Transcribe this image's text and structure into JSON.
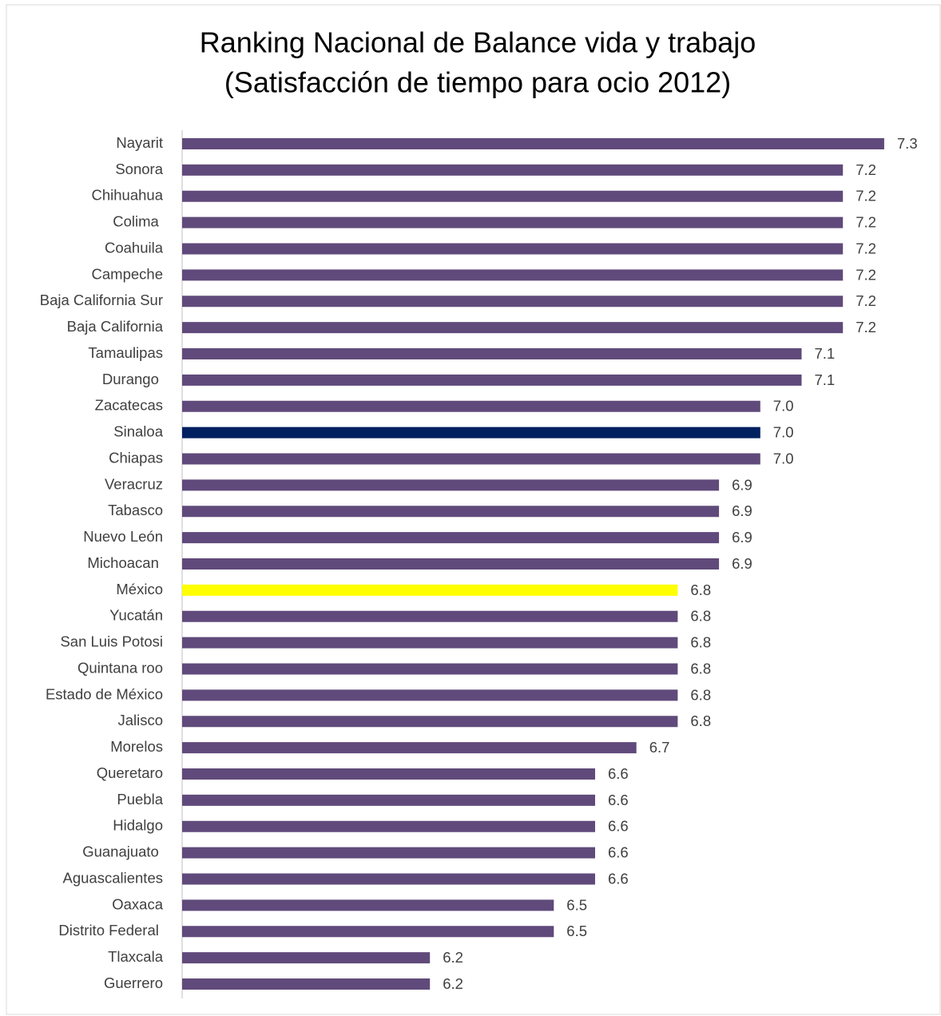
{
  "chart_data": {
    "type": "bar",
    "orientation": "horizontal",
    "title": [
      "Ranking Nacional de Balance vida y trabajo",
      "(Satisfacción de tiempo para ocio 2012)"
    ],
    "categories": [
      "Nayarit",
      "Sonora",
      "Chihuahua",
      "Colima ",
      "Coahuila",
      "Campeche",
      "Baja California Sur",
      "Baja California",
      "Tamaulipas",
      "Durango ",
      "Zacatecas",
      "Sinaloa",
      "Chiapas",
      "Veracruz",
      "Tabasco",
      "Nuevo León",
      "Michoacan ",
      "México",
      "Yucatán",
      "San Luis Potosi",
      "Quintana roo",
      "Estado de México",
      "Jalisco",
      "Morelos",
      "Queretaro",
      "Puebla",
      "Hidalgo",
      "Guanajuato ",
      "Aguascalientes",
      "Oaxaca",
      "Distrito Federal ",
      "Tlaxcala",
      "Guerrero"
    ],
    "values": [
      7.3,
      7.2,
      7.2,
      7.2,
      7.2,
      7.2,
      7.2,
      7.2,
      7.1,
      7.1,
      7.0,
      7.0,
      7.0,
      6.9,
      6.9,
      6.9,
      6.9,
      6.8,
      6.8,
      6.8,
      6.8,
      6.8,
      6.8,
      6.7,
      6.6,
      6.6,
      6.6,
      6.6,
      6.6,
      6.5,
      6.5,
      6.2,
      6.2
    ],
    "value_labels": [
      "7.3",
      "7.2",
      "7.2",
      "7.2",
      "7.2",
      "7.2",
      "7.2",
      "7.2",
      "7.1",
      "7.1",
      "7.0",
      "7.0",
      "7.0",
      "6.9",
      "6.9",
      "6.9",
      "6.9",
      "6.8",
      "6.8",
      "6.8",
      "6.8",
      "6.8",
      "6.8",
      "6.7",
      "6.6",
      "6.6",
      "6.6",
      "6.6",
      "6.6",
      "6.5",
      "6.5",
      "6.2",
      "6.2"
    ],
    "color": "#604a7b",
    "colors": [
      "#604a7b",
      "#604a7b",
      "#604a7b",
      "#604a7b",
      "#604a7b",
      "#604a7b",
      "#604a7b",
      "#604a7b",
      "#604a7b",
      "#604a7b",
      "#604a7b",
      "#002060",
      "#604a7b",
      "#604a7b",
      "#604a7b",
      "#604a7b",
      "#604a7b",
      "#ffff00",
      "#604a7b",
      "#604a7b",
      "#604a7b",
      "#604a7b",
      "#604a7b",
      "#604a7b",
      "#604a7b",
      "#604a7b",
      "#604a7b",
      "#604a7b",
      "#604a7b",
      "#604a7b",
      "#604a7b",
      "#604a7b",
      "#604a7b"
    ],
    "xlim": [
      5.6,
      7.4
    ],
    "grid": false
  }
}
